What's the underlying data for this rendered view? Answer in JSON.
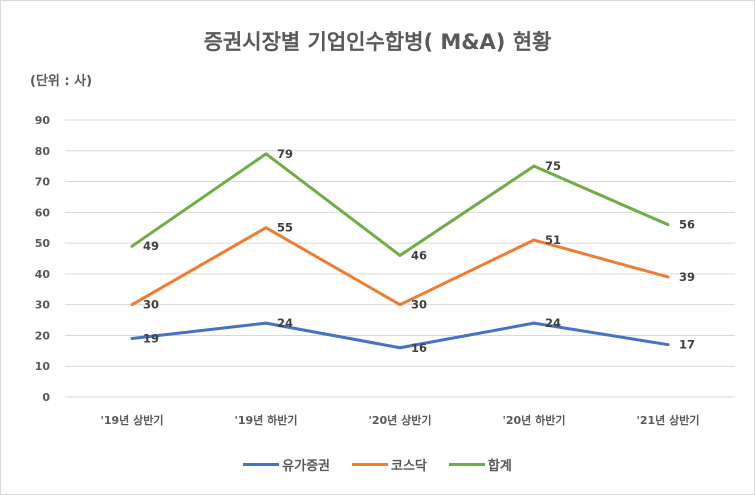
{
  "chart_data": {
    "type": "line",
    "title": "증권시장별 기업인수합병( M&A) 현황",
    "unit_label": "(단위 : 사)",
    "categories": [
      "'19년 상반기",
      "'19년 하반기",
      "'20년 상반기",
      "'20년 하반기",
      "'21년 상반기"
    ],
    "ylim": [
      0,
      90
    ],
    "yticks": [
      0,
      10,
      20,
      30,
      40,
      50,
      60,
      70,
      80,
      90
    ],
    "grid": true,
    "legend": "bottom",
    "series": [
      {
        "name": "유가증권",
        "color": "#4472c4",
        "values": [
          19,
          24,
          16,
          24,
          17
        ]
      },
      {
        "name": "코스닥",
        "color": "#ed7d31",
        "values": [
          30,
          55,
          30,
          51,
          39
        ]
      },
      {
        "name": "합계",
        "color": "#70ad47",
        "values": [
          49,
          79,
          46,
          75,
          56
        ]
      }
    ]
  }
}
